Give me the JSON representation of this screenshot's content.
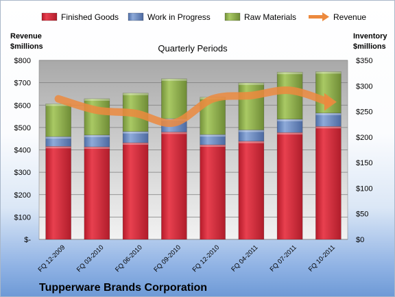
{
  "chart_data": {
    "type": "bar",
    "subtitle": "Quarterly Periods",
    "company": "Tupperware Brands Corporation",
    "left_axis_title": [
      "Revenue",
      "$millions"
    ],
    "right_axis_title": [
      "Inventory",
      "$millions"
    ],
    "categories": [
      "FQ 12-2009",
      "FQ 03-2010",
      "FQ 06-2010",
      "FQ 09-2010",
      "FQ 12-2010",
      "FQ 04-2011",
      "FQ 07-2011",
      "FQ 10-2011"
    ],
    "left_ticks": [
      "$-",
      "$100",
      "$200",
      "$300",
      "$400",
      "$500",
      "$600",
      "$700",
      "$800"
    ],
    "right_ticks": [
      "$0",
      "$50",
      "$100",
      "$150",
      "$200",
      "$250",
      "$300",
      "$350"
    ],
    "left_ylim": [
      0,
      800
    ],
    "right_ylim": [
      0,
      350
    ],
    "legend_position": "top",
    "stacked_series": [
      {
        "name": "Finished Goods",
        "color": "#e0283a",
        "values": [
          182,
          181,
          189,
          210,
          185,
          192,
          209,
          221
        ]
      },
      {
        "name": "Work in Progress",
        "color": "#6f8fc7",
        "values": [
          19,
          23,
          22,
          26,
          20,
          22,
          26,
          26
        ]
      },
      {
        "name": "Raw Materials",
        "color": "#98b954",
        "values": [
          64,
          71,
          75,
          78,
          73,
          92,
          92,
          81
        ]
      }
    ],
    "line_series": {
      "name": "Revenue",
      "color": "#ec8a3e",
      "values": [
        628,
        577,
        563,
        521,
        628,
        643,
        666,
        614
      ]
    }
  }
}
